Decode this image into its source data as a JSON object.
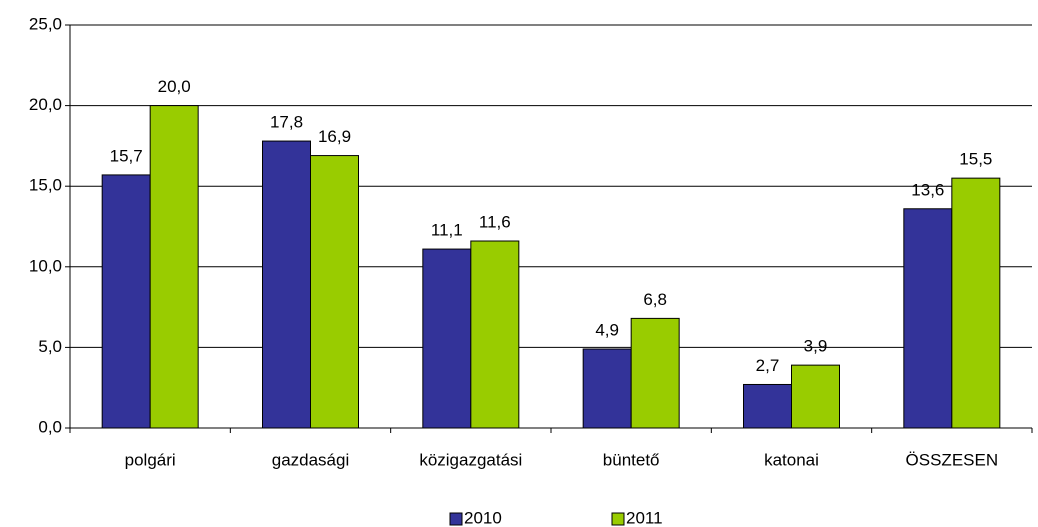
{
  "chart_data": {
    "type": "bar",
    "categories": [
      "polgári",
      "gazdasági",
      "közigazgatási",
      "büntető",
      "katonai",
      "ÖSSZESEN"
    ],
    "series": [
      {
        "name": "2010",
        "color": "#333399",
        "values": [
          15.7,
          17.8,
          11.1,
          4.9,
          2.7,
          13.6
        ],
        "value_labels": [
          "15,7",
          "17,8",
          "11,1",
          "4,9",
          "2,7",
          "13,6"
        ]
      },
      {
        "name": "2011",
        "color": "#99cc00",
        "values": [
          20.0,
          16.9,
          11.6,
          6.8,
          3.9,
          15.5
        ],
        "value_labels": [
          "20,0",
          "16,9",
          "11,6",
          "6,8",
          "3,9",
          "15,5"
        ]
      }
    ],
    "ylim": [
      0,
      25
    ],
    "yticks": [
      {
        "value": 0,
        "label": "0,0"
      },
      {
        "value": 5,
        "label": "5,0"
      },
      {
        "value": 10,
        "label": "10,0"
      },
      {
        "value": 15,
        "label": "15,0"
      },
      {
        "value": 20,
        "label": "20,0"
      },
      {
        "value": 25,
        "label": "25,0"
      }
    ],
    "grid": true,
    "legend": "bottom"
  }
}
